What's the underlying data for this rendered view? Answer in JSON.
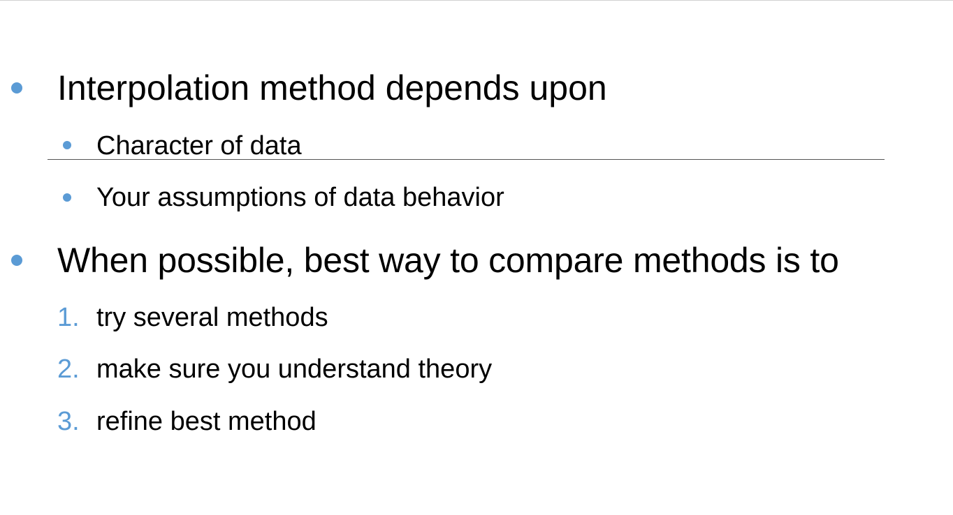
{
  "slide": {
    "accent_color": "#5b9bd5",
    "points": [
      {
        "text": "Interpolation method depends upon",
        "subpoints": [
          "Character of data",
          "Your assumptions of data behavior"
        ]
      },
      {
        "text": "When possible, best way to compare methods is to",
        "steps": [
          {
            "num": "1.",
            "text": "try several methods"
          },
          {
            "num": "2.",
            "text": "make sure you understand theory"
          },
          {
            "num": "3.",
            "text": "refine best method"
          }
        ]
      }
    ]
  }
}
